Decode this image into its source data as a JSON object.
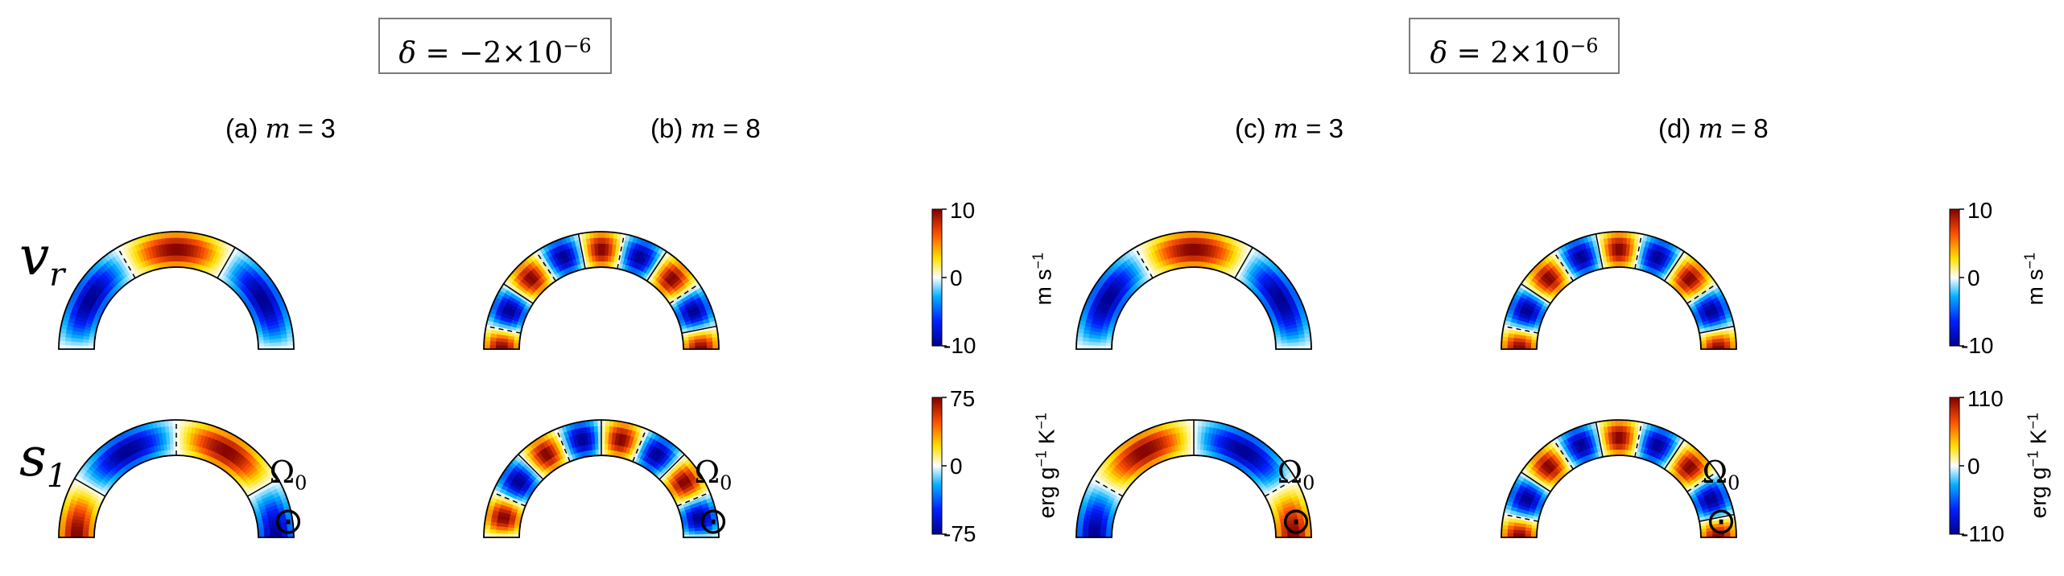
{
  "cases": [
    {
      "delta_label": "−2×10",
      "exp": "−6"
    },
    {
      "delta_label": "2×10",
      "exp": "−6"
    }
  ],
  "panels": [
    {
      "tag": "(a)",
      "m": "3"
    },
    {
      "tag": "(b)",
      "m": "8"
    },
    {
      "tag": "(c)",
      "m": "3"
    },
    {
      "tag": "(d)",
      "m": "8"
    }
  ],
  "rows": [
    {
      "symbol": "v",
      "sub": "r"
    },
    {
      "symbol": "s",
      "sub": "1"
    }
  ],
  "rotation": {
    "symbol": "Ω",
    "sub": "0",
    "glyph": "⊙"
  },
  "colorbars": [
    {
      "ticks": [
        "10",
        "0",
        "-10"
      ],
      "unit_pre": "m s",
      "unit_exp": "−1",
      "unit_post": ""
    },
    {
      "ticks": [
        "75",
        "0",
        "-75"
      ],
      "unit_pre": "erg g",
      "unit_exp": "−1",
      "unit_post": " K",
      "unit_exp2": "−1"
    },
    {
      "ticks": [
        "10",
        "0",
        "-10"
      ],
      "unit_pre": "m s",
      "unit_exp": "−1",
      "unit_post": ""
    },
    {
      "ticks": [
        "110",
        "0",
        "-110"
      ],
      "unit_pre": "erg g",
      "unit_exp": "−1",
      "unit_post": " K",
      "unit_exp2": "−1"
    }
  ],
  "chart_data": {
    "type": "heatmap",
    "description_free": true,
    "colormap": [
      "#00008f",
      "#0020ff",
      "#00b0ff",
      "#ffffff",
      "#ffe000",
      "#ff5000",
      "#7f0000"
    ],
    "panels": [
      {
        "case": 0,
        "m": 3,
        "row": "vr",
        "range": [
          -10,
          10
        ],
        "phase": 0.0,
        "sign": 1
      },
      {
        "case": 0,
        "m": 8,
        "row": "vr",
        "range": [
          -10,
          10
        ],
        "phase": 0.0,
        "sign": 1
      },
      {
        "case": 0,
        "m": 3,
        "row": "s1",
        "range": [
          -75,
          75
        ],
        "phase": 0.25,
        "sign": 1
      },
      {
        "case": 0,
        "m": 8,
        "row": "s1",
        "range": [
          -75,
          75
        ],
        "phase": 0.25,
        "sign": 1
      },
      {
        "case": 1,
        "m": 3,
        "row": "vr",
        "range": [
          -10,
          10
        ],
        "phase": 0.0,
        "sign": 1
      },
      {
        "case": 1,
        "m": 8,
        "row": "vr",
        "range": [
          -10,
          10
        ],
        "phase": 0.0,
        "sign": 1
      },
      {
        "case": 1,
        "m": 3,
        "row": "s1",
        "range": [
          -110,
          110
        ],
        "phase": -0.25,
        "sign": 1
      },
      {
        "case": 1,
        "m": 8,
        "row": "s1",
        "range": [
          -110,
          110
        ],
        "phase": 0.0,
        "sign": 1
      }
    ]
  }
}
